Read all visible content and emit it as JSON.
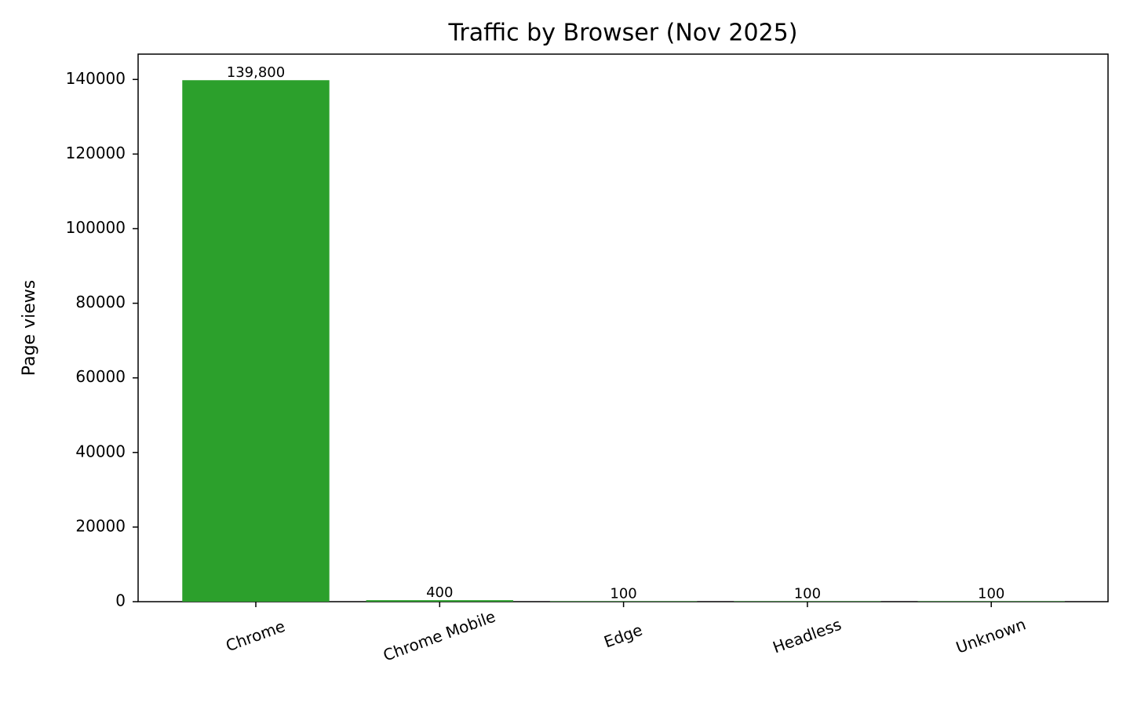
{
  "chart_data": {
    "type": "bar",
    "title": "Traffic by Browser (Nov 2025)",
    "y_label": "Page views",
    "categories": [
      "Chrome",
      "Chrome Mobile",
      "Edge",
      "Headless",
      "Unknown"
    ],
    "values": [
      139800,
      400,
      100,
      100,
      100
    ],
    "value_labels": [
      "139,800",
      "400",
      "100",
      "100",
      "100"
    ],
    "color": "#2ca02c",
    "ylim": [
      0,
      146790
    ],
    "yticks": [
      0,
      20000,
      40000,
      60000,
      80000,
      100000,
      120000,
      140000
    ],
    "grid": false
  }
}
